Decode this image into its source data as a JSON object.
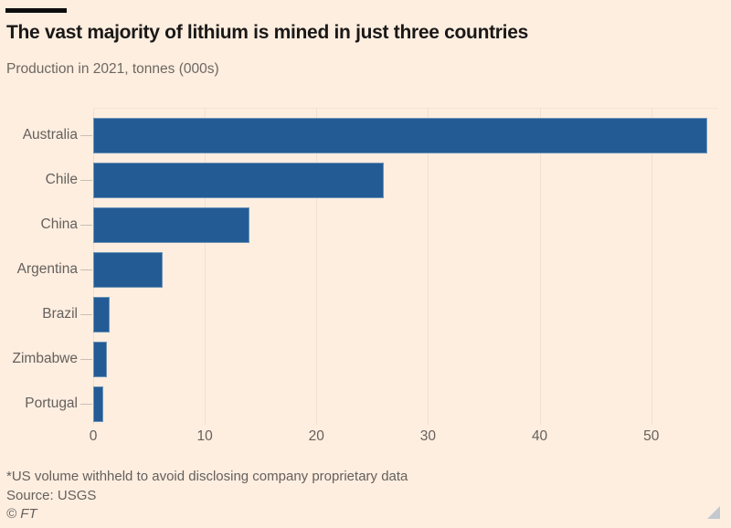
{
  "header": {
    "title": "The vast majority of lithium is mined in just three countries",
    "subtitle": "Production in 2021, tonnes (000s)"
  },
  "chart_data": {
    "type": "bar",
    "orientation": "horizontal",
    "title": "The vast majority of lithium is mined in just three countries",
    "subtitle": "Production in 2021, tonnes (000s)",
    "categories": [
      "Australia",
      "Chile",
      "China",
      "Argentina",
      "Brazil",
      "Zimbabwe",
      "Portugal"
    ],
    "values": [
      55,
      26,
      14,
      6.2,
      1.5,
      1.2,
      0.9
    ],
    "xlabel": "",
    "ylabel": "",
    "x_ticks": [
      0,
      10,
      20,
      30,
      40,
      50
    ],
    "xlim": [
      0,
      56
    ],
    "grid": "vertical-only",
    "legend": "none",
    "unit": "tonnes (000s)"
  },
  "footer": {
    "note": "*US volume withheld to avoid disclosing company proprietary data",
    "source": "Source: USGS",
    "copyright": "© FT"
  },
  "colors": {
    "background": "#fdeee0",
    "bar": "#235b94",
    "title_text": "#1a1817",
    "muted_text": "#66605c",
    "gridline": "#efe0d1",
    "tick_mark": "#c8bfb5",
    "top_rule": "#0d0d0d",
    "resize_handle": "#c3c9ce"
  }
}
